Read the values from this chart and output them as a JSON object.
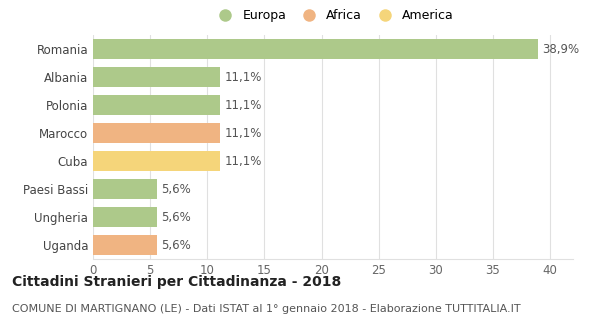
{
  "categories": [
    "Uganda",
    "Ungheria",
    "Paesi Bassi",
    "Cuba",
    "Marocco",
    "Polonia",
    "Albania",
    "Romania"
  ],
  "values": [
    5.6,
    5.6,
    5.6,
    11.1,
    11.1,
    11.1,
    11.1,
    38.9
  ],
  "colors": [
    "#f0b482",
    "#adc98a",
    "#adc98a",
    "#f5d57a",
    "#f0b482",
    "#adc98a",
    "#adc98a",
    "#adc98a"
  ],
  "labels": [
    "5,6%",
    "5,6%",
    "5,6%",
    "11,1%",
    "11,1%",
    "11,1%",
    "11,1%",
    "38,9%"
  ],
  "continent_colors": {
    "Europa": "#adc98a",
    "Africa": "#f0b482",
    "America": "#f5d57a"
  },
  "legend_items": [
    "Europa",
    "Africa",
    "America"
  ],
  "title": "Cittadini Stranieri per Cittadinanza - 2018",
  "subtitle": "COMUNE DI MARTIGNANO (LE) - Dati ISTAT al 1° gennaio 2018 - Elaborazione TUTTITALIA.IT",
  "xlim": [
    0,
    42
  ],
  "xticks": [
    0,
    5,
    10,
    15,
    20,
    25,
    30,
    35,
    40
  ],
  "background_color": "#ffffff",
  "grid_color": "#e0e0e0",
  "bar_height": 0.72,
  "label_fontsize": 8.5,
  "title_fontsize": 10,
  "subtitle_fontsize": 8
}
